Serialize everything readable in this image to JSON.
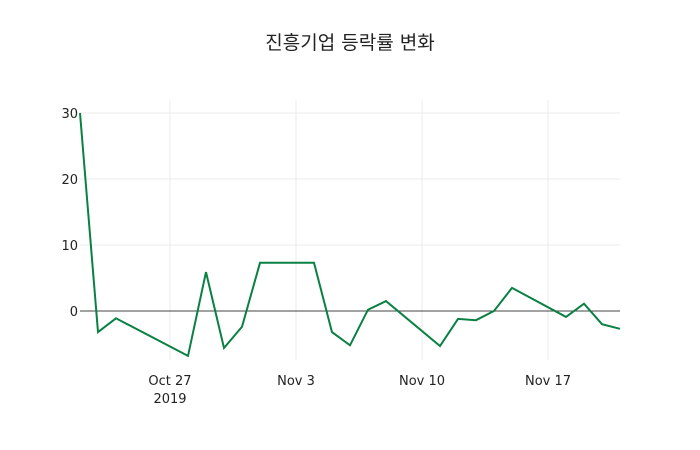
{
  "chart_data": {
    "type": "line",
    "title": "진흥기업 등락률 변화",
    "xlabel": "",
    "ylabel": "",
    "x": [
      "2019-10-22",
      "2019-10-23",
      "2019-10-24",
      "2019-10-28",
      "2019-10-29",
      "2019-10-30",
      "2019-10-31",
      "2019-11-01",
      "2019-11-04",
      "2019-11-05",
      "2019-11-06",
      "2019-11-07",
      "2019-11-08",
      "2019-11-11",
      "2019-11-12",
      "2019-11-13",
      "2019-11-14",
      "2019-11-15",
      "2019-11-18",
      "2019-11-19",
      "2019-11-20",
      "2019-11-21"
    ],
    "series": [
      {
        "name": "등락률",
        "color": "#0a8043",
        "values": [
          30.0,
          -3.2,
          -1.1,
          -6.8,
          5.9,
          -5.6,
          -2.4,
          7.3,
          7.3,
          -3.2,
          -5.2,
          0.2,
          1.5,
          -5.3,
          -1.2,
          -1.4,
          0.0,
          3.5,
          -0.9,
          1.1,
          -2.0,
          -2.7
        ]
      }
    ],
    "xticks": [
      {
        "date": "2019-10-27",
        "label": "Oct 27",
        "sublabel": "2019"
      },
      {
        "date": "2019-11-03",
        "label": "Nov 3",
        "sublabel": ""
      },
      {
        "date": "2019-11-10",
        "label": "Nov 10",
        "sublabel": ""
      },
      {
        "date": "2019-11-17",
        "label": "Nov 17",
        "sublabel": ""
      }
    ],
    "yticks": [
      0,
      10,
      20,
      30
    ],
    "xrange": [
      "2019-10-22",
      "2019-11-21"
    ],
    "ylim": [
      -7.5,
      32
    ],
    "grid": true,
    "legend": false
  }
}
